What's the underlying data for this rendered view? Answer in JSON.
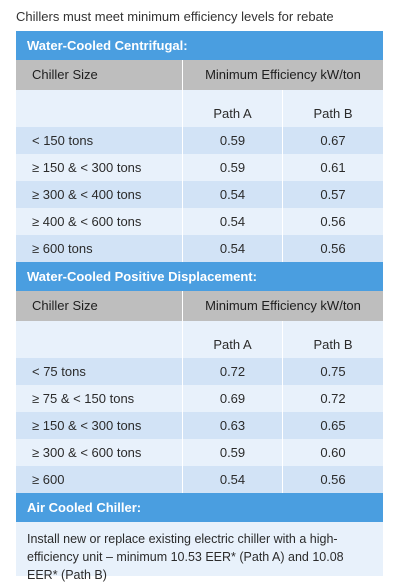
{
  "caption": "Chillers must meet minimum efficiency levels for rebate",
  "centrifugal": {
    "title": "Water-Cooled Centrifugal:",
    "col_size": "Chiller Size",
    "col_eff": "Minimum Efficiency kW/ton",
    "path_a": "Path A",
    "path_b": "Path B",
    "rows": [
      {
        "size": "< 150 tons",
        "a": "0.59",
        "b": "0.67"
      },
      {
        "size": "≥ 150 & < 300 tons",
        "a": "0.59",
        "b": "0.61"
      },
      {
        "size": "≥ 300 & < 400 tons",
        "a": "0.54",
        "b": "0.57"
      },
      {
        "size": "≥ 400 & < 600 tons",
        "a": "0.54",
        "b": "0.56"
      },
      {
        "size": "≥ 600 tons",
        "a": "0.54",
        "b": "0.56"
      }
    ]
  },
  "positive": {
    "title": "Water-Cooled Positive Displacement:",
    "col_size": "Chiller Size",
    "col_eff": "Minimum Efficiency kW/ton",
    "path_a": "Path A",
    "path_b": "Path B",
    "rows": [
      {
        "size": "< 75 tons",
        "a": "0.72",
        "b": "0.75"
      },
      {
        "size": "≥ 75 & < 150 tons",
        "a": "0.69",
        "b": "0.72"
      },
      {
        "size": "≥ 150 & < 300 tons",
        "a": "0.63",
        "b": "0.65"
      },
      {
        "size": "≥ 300 & < 600 tons",
        "a": "0.59",
        "b": "0.60"
      },
      {
        "size": "≥ 600",
        "a": "0.54",
        "b": "0.56"
      }
    ]
  },
  "air": {
    "title": "Air Cooled Chiller:",
    "text": "Install new or replace existing electric chiller with a high-efficiency unit – minimum 10.53 EER* (Path A) and 10.08 EER* (Path B)"
  }
}
